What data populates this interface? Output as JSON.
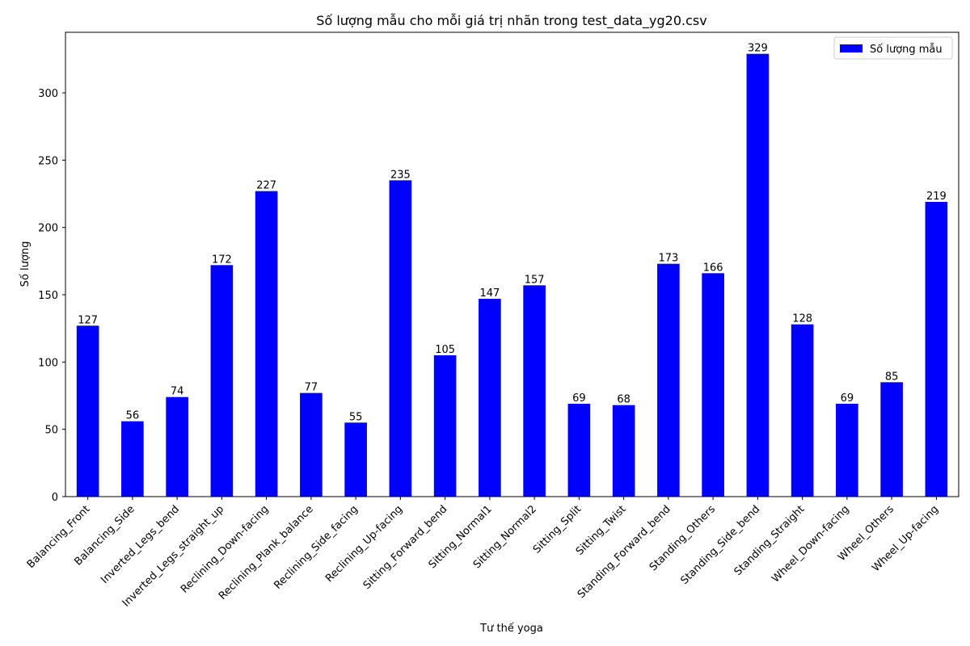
{
  "chart_data": {
    "type": "bar",
    "title": "Số lượng mẫu cho mỗi giá trị nhãn trong test_data_yg20.csv",
    "xlabel": "Tư thế yoga",
    "ylabel": "Số lượng",
    "categories": [
      "Balancing_Front",
      "Balancing_Side",
      "Inverted_Legs_bend",
      "Inverted_Legs_straight_up",
      "Reclining_Down-facing",
      "Reclining_Plank_balance",
      "Reclining_Side_facing",
      "Reclining_Up-facing",
      "Sitting_Forward_bend",
      "Sitting_Normal1",
      "Sitting_Normal2",
      "Sitting_Split",
      "Sitting_Twist",
      "Standing_Forward_bend",
      "Standing_Others",
      "Standing_Side_bend",
      "Standing_Straight",
      "Wheel_Down-facing",
      "Wheel_Others",
      "Wheel_Up-facing"
    ],
    "series": [
      {
        "name": "Số lượng mẫu",
        "color": "#0000ff",
        "values": [
          127,
          56,
          74,
          172,
          227,
          77,
          55,
          235,
          105,
          147,
          157,
          69,
          68,
          173,
          166,
          329,
          128,
          69,
          85,
          219
        ]
      }
    ],
    "ylim": [
      0,
      345
    ],
    "yticks": [
      0,
      50,
      100,
      150,
      200,
      250,
      300
    ],
    "grid": false,
    "legend_position": "top-right"
  }
}
